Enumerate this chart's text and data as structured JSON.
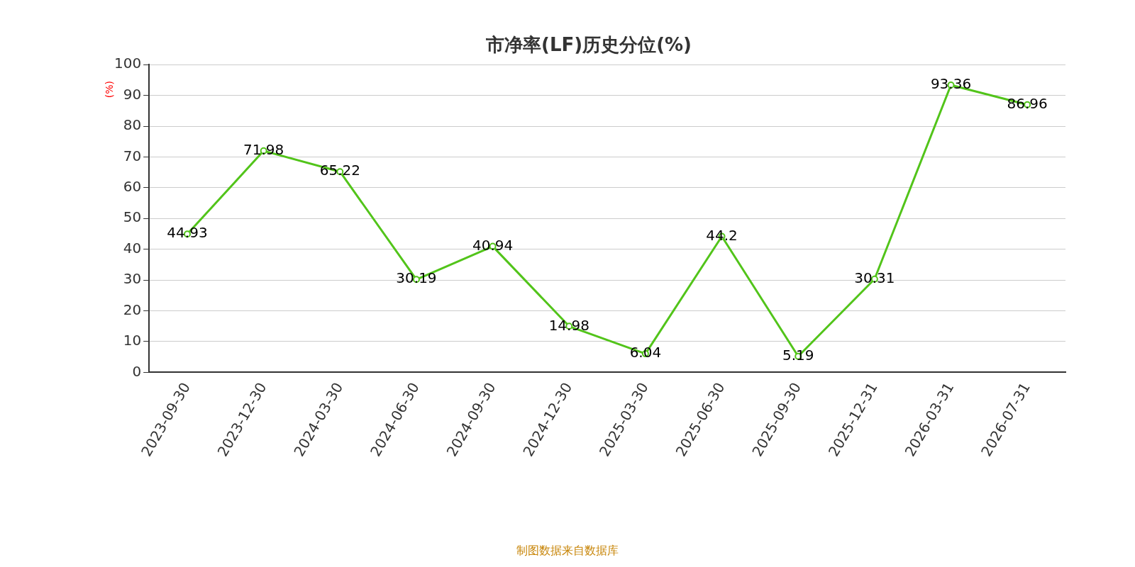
{
  "chart_data": {
    "type": "line",
    "title": "市净率(LF)历史分位(%)",
    "ylabel": "(%)",
    "annotations": [
      "制图数据来自数据库"
    ],
    "categories": [
      "2023-09-30",
      "2023-12-30",
      "2024-03-30",
      "2024-06-30",
      "2024-09-30",
      "2024-12-30",
      "2025-03-30",
      "2025-06-30",
      "2025-09-30",
      "2025-12-31",
      "2026-03-31",
      "2026-07-31"
    ],
    "series": [
      {
        "color": "#52c41a",
        "values": [
          44.93,
          71.98,
          65.22,
          30.19,
          40.94,
          14.98,
          6.04,
          44.2,
          5.19,
          30.31,
          93.36,
          86.96
        ]
      }
    ],
    "ylim": [
      0,
      100
    ],
    "yticks": [
      0,
      10,
      20,
      30,
      40,
      50,
      60,
      70,
      80,
      90,
      100
    ],
    "grid": "y",
    "legend": false,
    "marker": "circle",
    "line_style": "solid",
    "data_labels": true
  }
}
